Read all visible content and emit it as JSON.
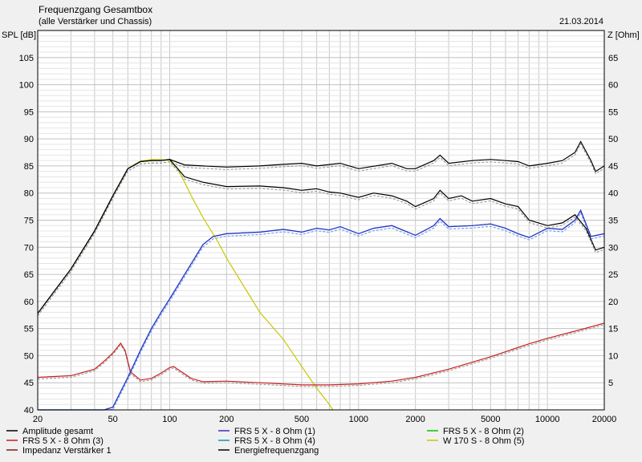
{
  "chart_data": {
    "type": "line",
    "title": "Frequenzgang Gesamtbox",
    "subtitle": "(alle Verstärker und Chassis)",
    "date": "21.03.2014",
    "ylabel_left": "SPL [dB]",
    "ylabel_right": "Z [Ohm]",
    "x_scale": "log",
    "xlim": [
      20,
      20000
    ],
    "ylim_left": [
      40,
      110
    ],
    "ylim_right": [
      0,
      70
    ],
    "x_ticks": [
      20,
      50,
      100,
      200,
      500,
      1000,
      2000,
      5000,
      10000,
      20000
    ],
    "x_tick_labels": [
      "20",
      "50",
      "100",
      "200",
      "500",
      "1000",
      "2000",
      "5000",
      "10000",
      "20000"
    ],
    "y_ticks_left": [
      40,
      45,
      50,
      55,
      60,
      65,
      70,
      75,
      80,
      85,
      90,
      95,
      100,
      105
    ],
    "y_ticks_right": [
      5,
      10,
      15,
      20,
      25,
      30,
      35,
      40,
      45,
      50,
      55,
      60,
      65
    ],
    "grid": true,
    "legend_position": "bottom",
    "series": [
      {
        "name": "Amplitude gesamt",
        "color": "#000000",
        "axis": "left",
        "x": [
          20,
          30,
          40,
          50,
          60,
          70,
          80,
          90,
          100,
          120,
          150,
          200,
          300,
          400,
          500,
          600,
          700,
          800,
          1000,
          1200,
          1500,
          1800,
          2000,
          2500,
          2700,
          3000,
          3500,
          4000,
          5000,
          6000,
          7000,
          8000,
          10000,
          12000,
          14000,
          16000,
          18000,
          20000
        ],
        "y": [
          57.8,
          66,
          73,
          79.5,
          84.5,
          85.8,
          86,
          86,
          86.2,
          83,
          82,
          81.2,
          81.3,
          81,
          80.5,
          80.8,
          80.2,
          80,
          79.2,
          80,
          79.5,
          78.5,
          77.5,
          79,
          80.5,
          79,
          79.5,
          78.5,
          79,
          78,
          77.5,
          75,
          74,
          74.5,
          76,
          73.5,
          69.5,
          70
        ]
      },
      {
        "name": "FRS 5 X - 8 Ohm (1)",
        "color": "#3030c8",
        "axis": "left",
        "x": [
          20,
          45,
          50,
          60,
          70,
          80,
          90,
          100,
          120,
          150,
          170,
          200,
          300,
          400,
          500,
          600,
          700,
          800,
          1000,
          1200,
          1500,
          2000,
          2500,
          2700,
          3000,
          4000,
          5000,
          6000,
          7000,
          8000,
          10000,
          12000,
          14000,
          15000,
          17000,
          20000
        ],
        "y": [
          40,
          40,
          40.5,
          46,
          51,
          55,
          58,
          60.5,
          65,
          70.5,
          72,
          72.5,
          72.8,
          73.3,
          72.8,
          73.5,
          73.2,
          73.8,
          72.5,
          73.5,
          74,
          72.2,
          74,
          75.3,
          73.8,
          74,
          74.3,
          73.5,
          72.5,
          71.8,
          73.5,
          73.3,
          75,
          76.8,
          72,
          72.5
        ]
      },
      {
        "name": "FRS 5 X - 8 Ohm (2)",
        "color": "#00c800",
        "axis": "left",
        "x": [],
        "y": []
      },
      {
        "name": "FRS 5 X - 8 Ohm (3)",
        "color": "#c81e1e",
        "axis": "right",
        "x": [
          20,
          30,
          40,
          45,
          50,
          55,
          58,
          62,
          70,
          80,
          90,
          100,
          105,
          110,
          130,
          150,
          200,
          300,
          500,
          700,
          1000,
          1500,
          2000,
          3000,
          5000,
          8000,
          10000,
          15000,
          20000
        ],
        "y": [
          6,
          6.3,
          7.5,
          9,
          10.5,
          12.3,
          11,
          7,
          5.5,
          5.8,
          6.8,
          7.8,
          8,
          7.5,
          5.8,
          5.2,
          5.3,
          5,
          4.6,
          4.6,
          4.8,
          5.3,
          6,
          7.5,
          9.8,
          12.2,
          13.2,
          14.8,
          16
        ]
      },
      {
        "name": "FRS 5 X - 8 Ohm (4)",
        "color": "#00a0a0",
        "axis": "left",
        "x": [
          20,
          45,
          50,
          60,
          70,
          80,
          90,
          100,
          120,
          150,
          170,
          200,
          300,
          400,
          500,
          600,
          700,
          800,
          1000,
          1200,
          1500,
          2000,
          2500,
          2700,
          3000,
          4000,
          5000,
          6000,
          7000,
          8000,
          10000,
          12000,
          14000,
          15000,
          17000,
          20000
        ],
        "y": [
          40,
          40,
          40.5,
          46,
          51,
          55,
          58,
          60.5,
          65,
          70.5,
          72,
          72.5,
          72.8,
          73.3,
          72.8,
          73.5,
          73.2,
          73.8,
          72.5,
          73.5,
          74,
          72.2,
          74,
          75.3,
          73.8,
          74,
          74.3,
          73.5,
          72.5,
          71.8,
          73.5,
          73.3,
          75,
          76.8,
          72,
          72.5
        ]
      },
      {
        "name": "W 170 S - 8 Ohm (5)",
        "color": "#c8c800",
        "axis": "left",
        "x": [
          20,
          30,
          40,
          50,
          60,
          70,
          80,
          90,
          100,
          110,
          120,
          130,
          150,
          180,
          200,
          250,
          300,
          400,
          500,
          600,
          700,
          730
        ],
        "y": [
          57.8,
          66,
          73,
          79.5,
          84.5,
          85.9,
          86.2,
          86.2,
          86,
          84.5,
          82,
          79.5,
          75.5,
          71,
          68,
          62.5,
          58,
          53,
          48,
          44,
          41,
          40
        ]
      },
      {
        "name": "Impedanz Verstärker 1",
        "color": "#7a1a1a",
        "axis": "right",
        "x": [],
        "y": []
      },
      {
        "name": "Energiefrequenzgang",
        "color": "#000000",
        "axis": "left",
        "x": [
          20,
          30,
          40,
          50,
          60,
          70,
          80,
          90,
          100,
          120,
          150,
          200,
          300,
          400,
          500,
          600,
          800,
          1000,
          1500,
          1800,
          2000,
          2500,
          2700,
          3000,
          4000,
          5000,
          6000,
          7000,
          8000,
          10000,
          12000,
          14000,
          15000,
          17000,
          18000,
          20000
        ],
        "y": [
          57.8,
          66,
          73,
          79.5,
          84.5,
          85.8,
          86,
          86,
          86.2,
          85.2,
          85,
          84.8,
          85,
          85.3,
          85.5,
          85,
          85.5,
          84.5,
          85.5,
          84.5,
          84.5,
          86,
          87,
          85.5,
          86,
          86.2,
          86,
          85.8,
          85,
          85.5,
          86,
          87.5,
          89.5,
          86,
          84,
          85
        ]
      }
    ]
  }
}
